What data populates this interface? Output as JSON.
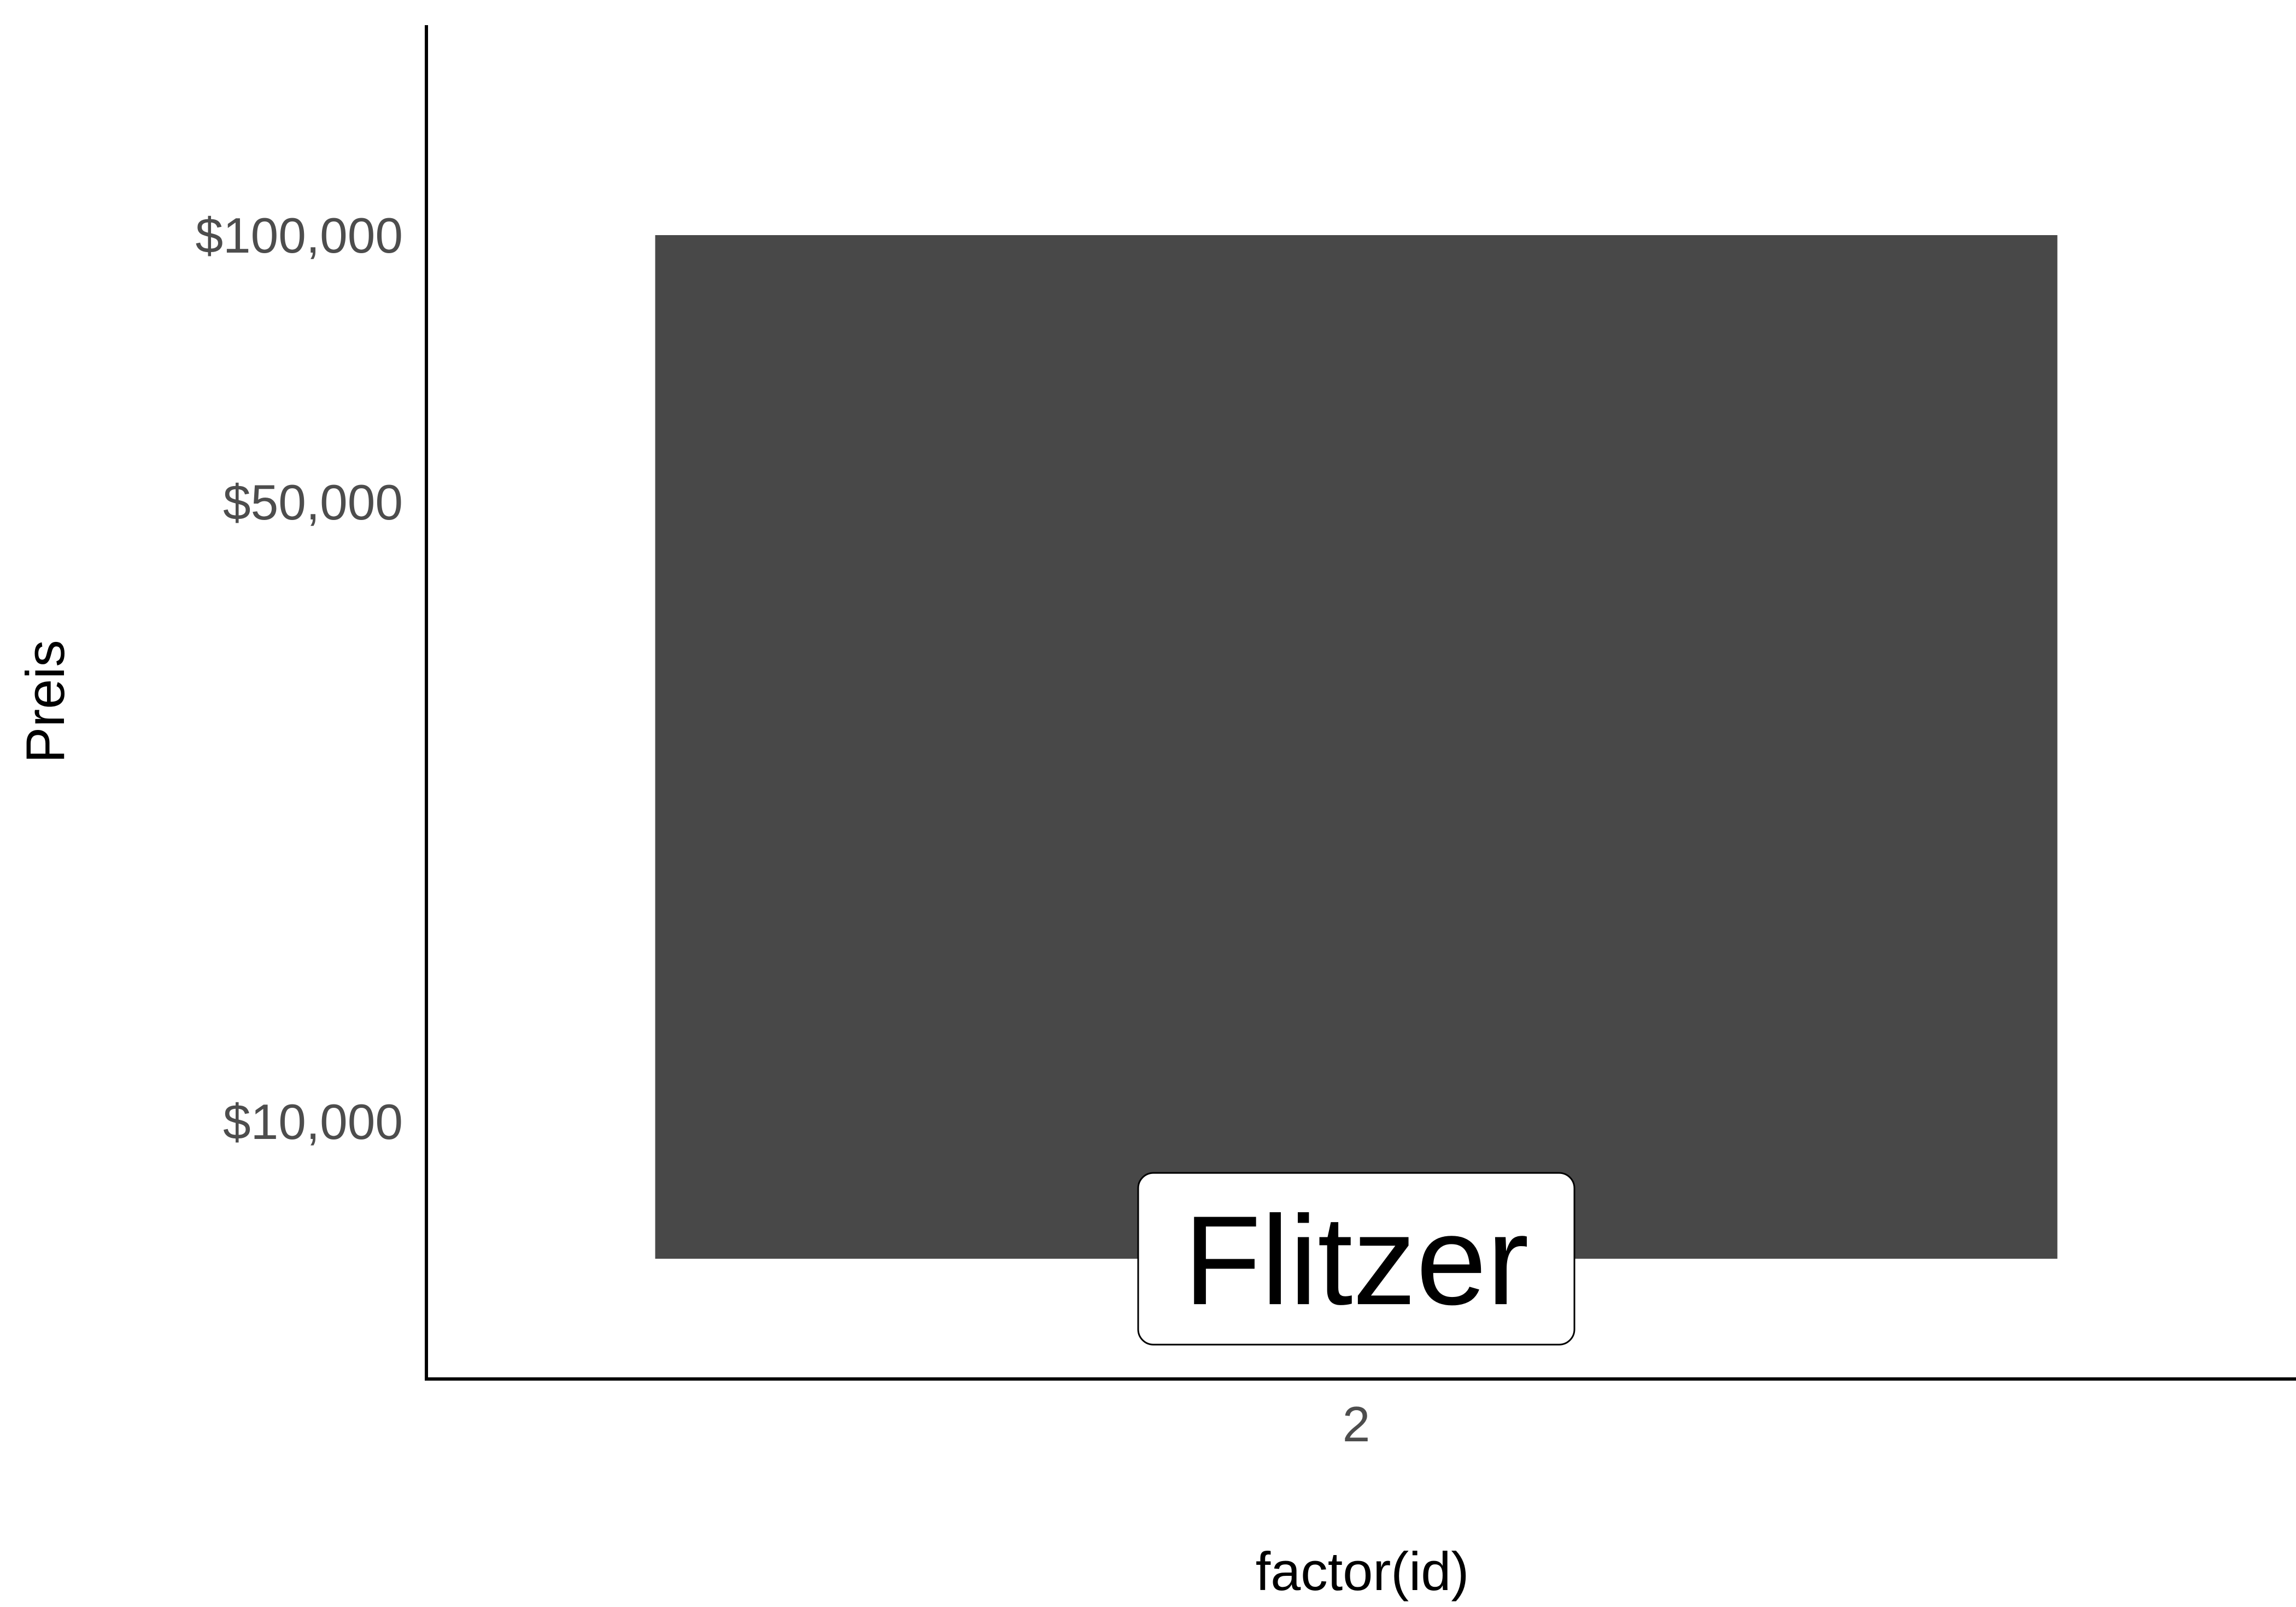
{
  "chart_data": {
    "type": "bar",
    "title": "",
    "xlabel": "factor(id)",
    "ylabel": "Preis",
    "categories": [
      "2"
    ],
    "values": [
      100000
    ],
    "bar_labels": [
      "Flitzer"
    ],
    "y_scale": "log10",
    "ylim": [
      4600,
      200000
    ],
    "y_ticks": [
      {
        "value": 10000,
        "label": "$10,000"
      },
      {
        "value": 50000,
        "label": "$50,000"
      },
      {
        "value": 100000,
        "label": "$100,000"
      }
    ],
    "bar_baseline": 7000,
    "grid": false,
    "legend": "none",
    "colors": {
      "bar": "#484848",
      "axis": "#000000",
      "tick_text": "#4d4d4d",
      "label_box_fill": "#ffffff",
      "label_box_stroke": "#000000"
    }
  }
}
